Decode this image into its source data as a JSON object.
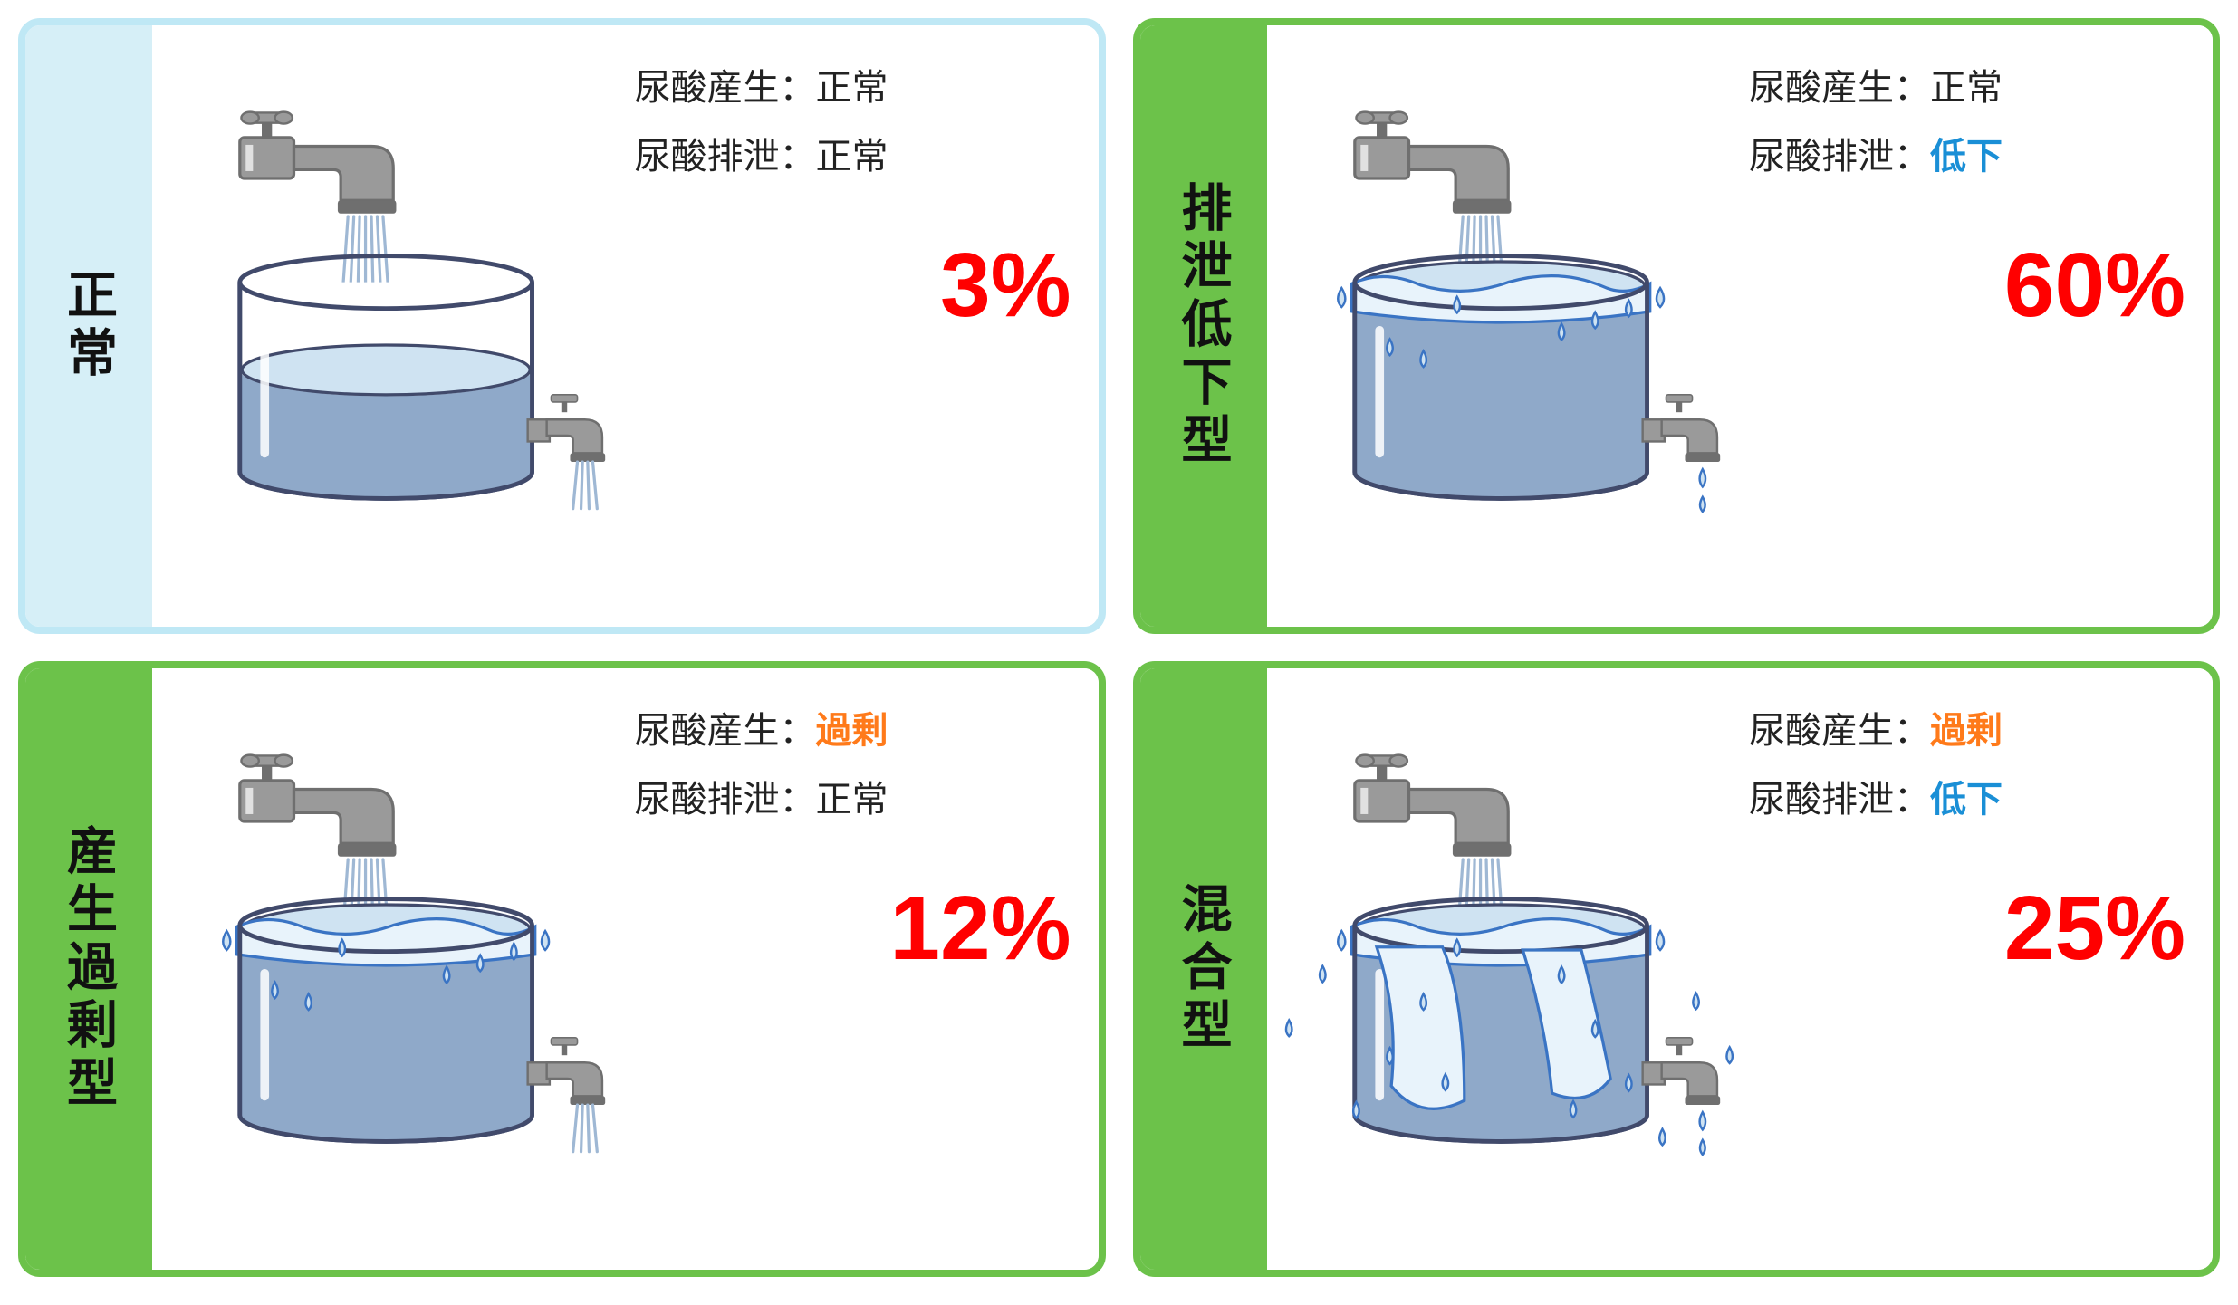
{
  "labels": {
    "production_prefix": "尿酸産生：",
    "excretion_prefix": "尿酸排泄：",
    "status": {
      "normal": "正常",
      "excess": "過剰",
      "low": "低下"
    }
  },
  "colors": {
    "normal_border": "#bfe8f5",
    "normal_side_bg": "#d6eff7",
    "green_border": "#6cc24a",
    "green_side_bg": "#6cc24a",
    "side_text": "#111111",
    "pct_text": "#ff0000",
    "faucet_dark": "#6f6f6f",
    "faucet_light": "#9a9a9a",
    "tank_stroke": "#414a6b",
    "water_fill": "#8fa9c9",
    "water_light": "#cfe3f2",
    "water_top": "#e8f3fb",
    "drop_stroke": "#3a74c4",
    "drop_fill": "#cfe3f2"
  },
  "panels": [
    {
      "id": "normal",
      "title": "正常",
      "border_color_key": "normal_border",
      "side_bg_key": "normal_side_bg",
      "production_key": "normal",
      "excretion_key": "normal",
      "percent": "3%",
      "water_level": "half",
      "overflow": false,
      "outlet_drip": false,
      "outlet_flow": true
    },
    {
      "id": "excretion-low",
      "title": "排泄低下型",
      "border_color_key": "green_border",
      "side_bg_key": "green_side_bg",
      "production_key": "normal",
      "excretion_key": "low",
      "percent": "60%",
      "water_level": "full",
      "overflow": true,
      "overflow_intensity": 1,
      "outlet_drip": true,
      "outlet_flow": false
    },
    {
      "id": "production-excess",
      "title": "産生過剰型",
      "border_color_key": "green_border",
      "side_bg_key": "green_side_bg",
      "production_key": "excess",
      "excretion_key": "normal",
      "percent": "12%",
      "water_level": "full",
      "overflow": true,
      "overflow_intensity": 1,
      "outlet_drip": false,
      "outlet_flow": true
    },
    {
      "id": "mixed",
      "title": "混合型",
      "border_color_key": "green_border",
      "side_bg_key": "green_side_bg",
      "production_key": "excess",
      "excretion_key": "low",
      "percent": "25%",
      "water_level": "full",
      "overflow": true,
      "overflow_intensity": 2,
      "outlet_drip": true,
      "outlet_flow": false
    }
  ]
}
